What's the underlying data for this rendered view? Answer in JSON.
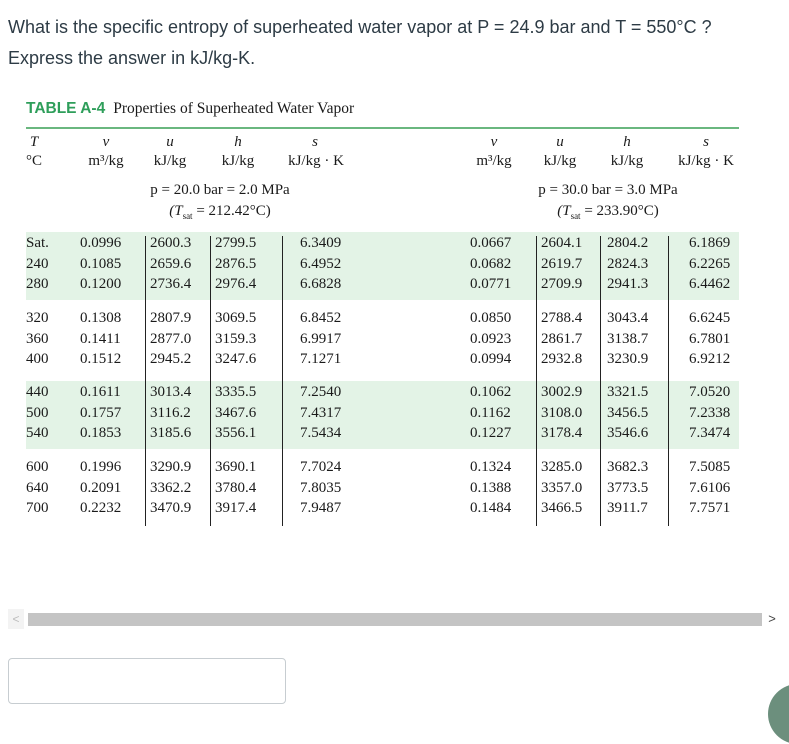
{
  "question": {
    "line1": "What is the specific entropy of superheated water vapor at P = 24.9 bar and T = 550°C ?",
    "line2": "Express the answer in kJ/kg-K."
  },
  "table": {
    "label": "TABLE A-4",
    "title": "Properties of Superheated Water Vapor",
    "headers": {
      "T": "T",
      "T_unit": "°C",
      "v": "v",
      "v_unit": "m³/kg",
      "u": "u",
      "u_unit": "kJ/kg",
      "h": "h",
      "h_unit": "kJ/kg",
      "s": "s",
      "s_unit": "kJ/kg · K"
    },
    "left_block": {
      "pressure": "p = 20.0 bar = 2.0 MPa",
      "tsat_prefix": "(T",
      "tsat_sub": "sat",
      "tsat_value": " = 212.42°C)"
    },
    "right_block": {
      "pressure": "p = 30.0 bar = 3.0 MPa",
      "tsat_prefix": "(T",
      "tsat_sub": "sat",
      "tsat_value": " = 233.90°C)"
    },
    "rows": [
      [
        "Sat.",
        "0.0996",
        "2600.3",
        "2799.5",
        "6.3409",
        "0.0667",
        "2604.1",
        "2804.2",
        "6.1869"
      ],
      [
        "240",
        "0.1085",
        "2659.6",
        "2876.5",
        "6.4952",
        "0.0682",
        "2619.7",
        "2824.3",
        "6.2265"
      ],
      [
        "280",
        "0.1200",
        "2736.4",
        "2976.4",
        "6.6828",
        "0.0771",
        "2709.9",
        "2941.3",
        "6.4462"
      ],
      [
        "320",
        "0.1308",
        "2807.9",
        "3069.5",
        "6.8452",
        "0.0850",
        "2788.4",
        "3043.4",
        "6.6245"
      ],
      [
        "360",
        "0.1411",
        "2877.0",
        "3159.3",
        "6.9917",
        "0.0923",
        "2861.7",
        "3138.7",
        "6.7801"
      ],
      [
        "400",
        "0.1512",
        "2945.2",
        "3247.6",
        "7.1271",
        "0.0994",
        "2932.8",
        "3230.9",
        "6.9212"
      ],
      [
        "440",
        "0.1611",
        "3013.4",
        "3335.5",
        "7.2540",
        "0.1062",
        "3002.9",
        "3321.5",
        "7.0520"
      ],
      [
        "500",
        "0.1757",
        "3116.2",
        "3467.6",
        "7.4317",
        "0.1162",
        "3108.0",
        "3456.5",
        "7.2338"
      ],
      [
        "540",
        "0.1853",
        "3185.6",
        "3556.1",
        "7.5434",
        "0.1227",
        "3178.4",
        "3546.6",
        "7.3474"
      ],
      [
        "600",
        "0.1996",
        "3290.9",
        "3690.1",
        "7.7024",
        "0.1324",
        "3285.0",
        "3682.3",
        "7.5085"
      ],
      [
        "640",
        "0.2091",
        "3362.2",
        "3780.4",
        "7.8035",
        "0.1388",
        "3357.0",
        "3773.5",
        "7.6106"
      ],
      [
        "700",
        "0.2232",
        "3470.9",
        "3917.4",
        "7.9487",
        "0.1484",
        "3466.5",
        "3911.7",
        "7.7571"
      ]
    ]
  },
  "scrollbar": {
    "left_icon": "chevron-left-icon",
    "right_icon": "chevron-right-icon",
    "left_glyph": "<",
    "right_glyph": ">"
  },
  "answer": {
    "value": ""
  }
}
